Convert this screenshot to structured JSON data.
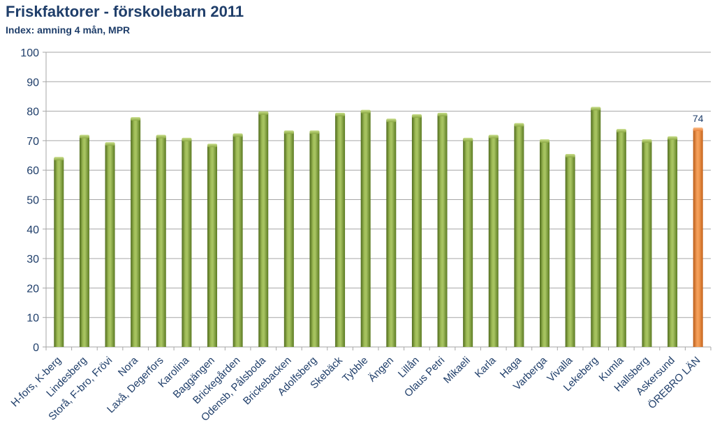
{
  "header": {
    "title": "Friskfaktorer - förskolebarn 2011",
    "subtitle": "Index: amning 4 mån, MPR"
  },
  "colors": {
    "bar_green": "#7d9a35",
    "bar_highlight": "#e9823a",
    "grid": "#a6a6a6",
    "text": "#1f3e6a"
  },
  "chart_data": {
    "type": "bar",
    "title": "Friskfaktorer - förskolebarn 2011",
    "subtitle": "Index: amning 4 mån, MPR",
    "xlabel": "",
    "ylabel": "",
    "ylim": [
      0,
      100
    ],
    "yticks": [
      0,
      10,
      20,
      30,
      40,
      50,
      60,
      70,
      80,
      90,
      100
    ],
    "grid": true,
    "legend": "none",
    "categories": [
      "H-fors, K-berg",
      "Lindesberg",
      "Storå, F-bro, Frövi",
      "Nora",
      "Laxå, Degerfors",
      "Karolina",
      "Baggängen",
      "Brickegården",
      "Odensb, Pålsboda",
      "Brickebacken",
      "Adolfsberg",
      "Skebäck",
      "Tybble",
      "Ängen",
      "Lillån",
      "Olaus Petri",
      "Mikaeli",
      "Karla",
      "Haga",
      "Varberga",
      "Vivalla",
      "Lekeberg",
      "Kumla",
      "Hallsberg",
      "Askersund",
      "ÖREBRO LÄN"
    ],
    "values": [
      64,
      71.5,
      69,
      77.5,
      71.5,
      70.5,
      68.5,
      72,
      79.5,
      73,
      73,
      79,
      80,
      77,
      78.5,
      79,
      70.5,
      71.5,
      75.5,
      70,
      65,
      81,
      73.5,
      70,
      71,
      74
    ],
    "highlight_index": 25,
    "data_labels": [
      {
        "index": 25,
        "text": "74"
      }
    ]
  }
}
